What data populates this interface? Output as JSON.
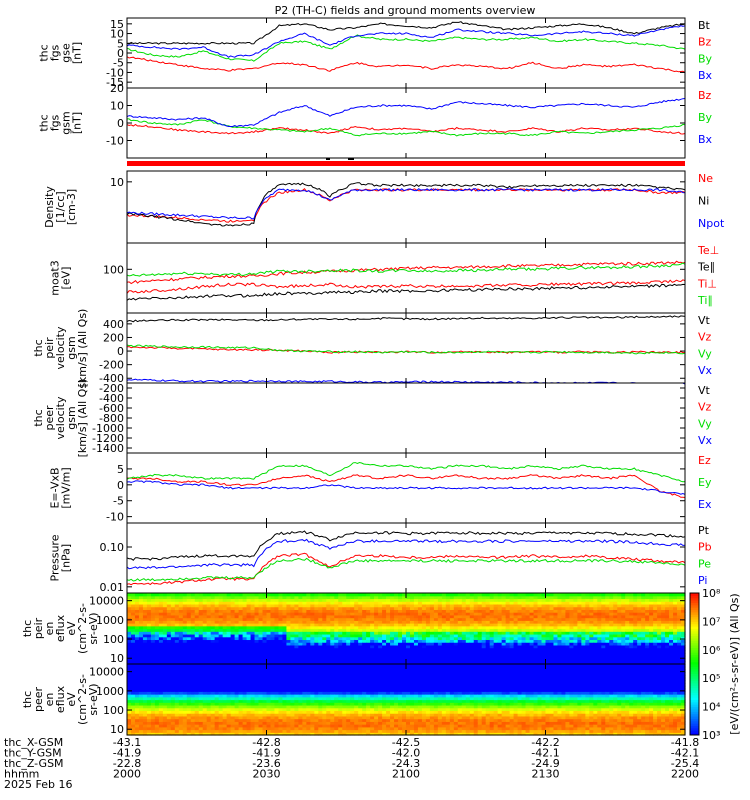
{
  "title": "P2 (TH-C) fields and ground moments overview",
  "colors": {
    "black": "#000000",
    "red": "#ff0000",
    "green": "#00dd00",
    "blue": "#0000ff"
  },
  "orbit_bar_color": "#ff0000",
  "chart_data": [
    {
      "id": "fgs_gse",
      "type": "line",
      "ylabel": [
        "thc",
        "fgs",
        "gse",
        "[nT]"
      ],
      "yticks": [
        15,
        10,
        5,
        0,
        -5,
        -10,
        -15
      ],
      "ylim": [
        -18,
        18
      ],
      "series": [
        {
          "name": "Bt",
          "color": "#000000",
          "values": [
            5,
            5,
            5,
            5,
            5,
            5,
            14,
            15,
            12,
            13,
            15,
            14,
            13,
            16,
            14,
            12,
            13,
            14,
            15,
            13,
            10,
            13,
            15
          ]
        },
        {
          "name": "Bz",
          "color": "#ff0000",
          "values": [
            -2,
            -4,
            -6,
            -8,
            -9,
            -8,
            -5,
            -6,
            -9,
            -5,
            -7,
            -6,
            -8,
            -6,
            -7,
            -8,
            -5,
            -8,
            -6,
            -7,
            -6,
            -8,
            -10
          ]
        },
        {
          "name": "By",
          "color": "#00dd00",
          "values": [
            2,
            -1,
            -2,
            1,
            -3,
            -4,
            5,
            6,
            2,
            9,
            7,
            7,
            6,
            8,
            7,
            7,
            8,
            6,
            7,
            6,
            5,
            4,
            2
          ]
        },
        {
          "name": "Bx",
          "color": "#0000ff",
          "values": [
            4,
            3,
            2,
            3,
            -2,
            -1,
            6,
            10,
            4,
            9,
            10,
            10,
            8,
            12,
            11,
            10,
            9,
            10,
            11,
            10,
            9,
            12,
            14
          ]
        }
      ]
    },
    {
      "id": "fgs_gsm",
      "type": "line",
      "ylabel": [
        "thc",
        "fgs",
        "gsm",
        "[nT]"
      ],
      "yticks": [
        20,
        10,
        0,
        -10
      ],
      "ylim": [
        -20,
        20
      ],
      "series": [
        {
          "name": "Bz",
          "color": "#ff0000",
          "values": [
            -1,
            -2,
            -4,
            -5,
            -6,
            -5,
            -3,
            -4,
            -6,
            -2,
            -4,
            -3,
            -5,
            -3,
            -4,
            -5,
            -3,
            -5,
            -3,
            -4,
            -3,
            -5,
            -6
          ]
        },
        {
          "name": "By",
          "color": "#00dd00",
          "values": [
            2,
            0,
            -1,
            2,
            -2,
            -3,
            -4,
            -5,
            -3,
            -7,
            -6,
            -6,
            -5,
            -7,
            -6,
            -6,
            -7,
            -5,
            -6,
            -5,
            -4,
            -3,
            -1
          ]
        },
        {
          "name": "Bx",
          "color": "#0000ff",
          "values": [
            4,
            3,
            2,
            3,
            -2,
            -1,
            6,
            10,
            4,
            9,
            10,
            10,
            8,
            12,
            11,
            10,
            9,
            10,
            11,
            10,
            9,
            12,
            14
          ]
        }
      ]
    },
    {
      "id": "density",
      "type": "line",
      "ylabel": [
        "Density",
        "[1/cc]",
        "[cm-3]"
      ],
      "yticks": [
        10
      ],
      "ylim": [
        0.2,
        20
      ],
      "scale": "log",
      "series": [
        {
          "name": "Ne",
          "color": "#ff0000",
          "values": [
            1.2,
            1.1,
            1.0,
            0.9,
            0.8,
            0.9,
            5,
            6,
            3,
            6,
            6,
            6,
            6,
            6,
            6,
            6,
            6,
            6,
            6,
            6,
            6,
            5,
            5
          ]
        },
        {
          "name": "Ni",
          "color": "#000000",
          "values": [
            1.3,
            1.1,
            0.9,
            0.7,
            0.6,
            0.7,
            8,
            9,
            4,
            9,
            8,
            8,
            8,
            8,
            8,
            7,
            8,
            8,
            8,
            8,
            8,
            7,
            6
          ]
        },
        {
          "name": "Npot",
          "color": "#0000ff",
          "values": [
            1.4,
            1.3,
            1.2,
            1.1,
            1.0,
            1.0,
            6,
            6,
            3,
            6,
            6,
            6,
            6,
            6,
            6,
            6,
            6,
            6,
            6,
            6,
            6,
            6,
            5
          ]
        }
      ]
    },
    {
      "id": "temperature",
      "type": "line",
      "ylabel": [
        "moat3",
        "[eV]"
      ],
      "yticks": [
        100
      ],
      "ylim": [
        10,
        400
      ],
      "scale": "log",
      "series": [
        {
          "name": "Te⊥",
          "color": "#ff0000",
          "values": [
            30,
            32,
            35,
            40,
            45,
            45,
            40,
            42,
            45,
            40,
            40,
            42,
            40,
            42,
            42,
            44,
            44,
            46,
            46,
            48,
            48,
            52,
            55
          ]
        },
        {
          "name": "Te∥",
          "color": "#000000",
          "values": [
            20,
            22,
            22,
            24,
            25,
            25,
            28,
            28,
            30,
            30,
            32,
            32,
            32,
            34,
            34,
            36,
            36,
            38,
            38,
            40,
            40,
            42,
            45
          ]
        },
        {
          "name": "Ti⊥",
          "color": "#ff0000",
          "values": [
            50,
            55,
            60,
            65,
            70,
            70,
            80,
            85,
            90,
            95,
            100,
            105,
            110,
            110,
            115,
            120,
            120,
            125,
            130,
            135,
            135,
            140,
            145
          ]
        },
        {
          "name": "Ti∥",
          "color": "#00dd00",
          "values": [
            70,
            75,
            80,
            80,
            75,
            80,
            90,
            90,
            95,
            95,
            90,
            95,
            90,
            95,
            95,
            100,
            100,
            105,
            110,
            110,
            115,
            120,
            130
          ]
        }
      ]
    },
    {
      "id": "peir_velocity",
      "type": "line",
      "ylabel": [
        "thc",
        "peir",
        "velocity",
        "gsm",
        "[km/s] (All Qs)"
      ],
      "yticks": [
        400,
        200,
        0,
        -200,
        -400
      ],
      "ylim": [
        -470,
        560
      ],
      "series": [
        {
          "name": "Vt",
          "color": "#000000",
          "values": [
            440,
            450,
            455,
            460,
            460,
            455,
            460,
            470,
            465,
            470,
            480,
            475,
            470,
            480,
            485,
            480,
            485,
            490,
            495,
            490,
            500,
            505,
            510
          ]
        },
        {
          "name": "Vz",
          "color": "#ff0000",
          "values": [
            60,
            50,
            40,
            30,
            20,
            20,
            10,
            0,
            -20,
            -10,
            -20,
            -10,
            -20,
            -10,
            -10,
            -20,
            -10,
            -20,
            -10,
            -20,
            -10,
            -20,
            -20
          ]
        },
        {
          "name": "Vy",
          "color": "#00dd00",
          "values": [
            80,
            70,
            60,
            60,
            50,
            50,
            10,
            0,
            -10,
            -10,
            -20,
            -10,
            -20,
            -20,
            -10,
            -20,
            -20,
            -10,
            -20,
            -20,
            -30,
            -20,
            -30
          ]
        },
        {
          "name": "Vx",
          "color": "#0000ff",
          "values": [
            -420,
            -430,
            -440,
            -445,
            -445,
            -440,
            -440,
            -450,
            -445,
            -455,
            -460,
            -455,
            -450,
            -455,
            -460,
            -460,
            -465,
            -470,
            -470,
            -470,
            -475,
            -480,
            -485
          ]
        }
      ]
    },
    {
      "id": "peer_velocity",
      "type": "line",
      "ylabel": [
        "thc",
        "peer",
        "velocity",
        "gsm",
        "[km/s] (All Qs)"
      ],
      "yticks": [
        -200,
        -400,
        -600,
        -800,
        -1000,
        -1200,
        -1400
      ],
      "ylim": [
        -1500,
        -100
      ],
      "series": [
        {
          "name": "Vt",
          "color": "#000000",
          "values": []
        },
        {
          "name": "Vz",
          "color": "#ff0000",
          "values": []
        },
        {
          "name": "Vy",
          "color": "#00dd00",
          "values": []
        },
        {
          "name": "Vx",
          "color": "#0000ff",
          "values": []
        }
      ]
    },
    {
      "id": "efield",
      "type": "line",
      "ylabel": [
        "E=-VxB",
        "[mV/m]"
      ],
      "yticks": [
        5,
        0,
        -5,
        -10
      ],
      "ylim": [
        -12,
        10
      ],
      "series": [
        {
          "name": "Ez",
          "color": "#ff0000",
          "values": [
            2,
            2,
            1,
            1,
            0,
            0,
            2,
            3,
            1,
            3,
            2,
            3,
            2,
            3,
            2,
            2,
            3,
            2,
            3,
            2,
            3,
            -2,
            -4
          ]
        },
        {
          "name": "Ey",
          "color": "#00dd00",
          "values": [
            2,
            3,
            3,
            2,
            2,
            2,
            6,
            6,
            3,
            7,
            6,
            6,
            5,
            6,
            6,
            5,
            6,
            5,
            6,
            5,
            5,
            3,
            1
          ]
        },
        {
          "name": "Ex",
          "color": "#0000ff",
          "values": [
            1,
            1,
            0,
            0,
            -1,
            -1,
            -1,
            -1,
            0,
            -1,
            -1,
            -1,
            -1,
            -1,
            -1,
            -1,
            -1,
            -1,
            -1,
            -1,
            -1,
            -2,
            -3
          ]
        }
      ]
    },
    {
      "id": "pressure",
      "type": "line",
      "ylabel": [
        "Pressure",
        "[nPa]"
      ],
      "yticks": [
        0.1,
        0.01
      ],
      "tick_labels": [
        "0.10",
        "0.01"
      ],
      "ylim": [
        0.007,
        0.4
      ],
      "scale": "log",
      "series": [
        {
          "name": "Pt",
          "color": "#000000",
          "values": [
            0.05,
            0.05,
            0.055,
            0.06,
            0.06,
            0.06,
            0.22,
            0.24,
            0.15,
            0.23,
            0.23,
            0.22,
            0.22,
            0.23,
            0.22,
            0.22,
            0.22,
            0.23,
            0.22,
            0.22,
            0.21,
            0.2,
            0.18
          ]
        },
        {
          "name": "Pb",
          "color": "#ff0000",
          "values": [
            0.012,
            0.012,
            0.013,
            0.015,
            0.016,
            0.015,
            0.06,
            0.065,
            0.03,
            0.06,
            0.06,
            0.055,
            0.055,
            0.06,
            0.055,
            0.055,
            0.06,
            0.055,
            0.06,
            0.055,
            0.05,
            0.045,
            0.04
          ]
        },
        {
          "name": "Pe",
          "color": "#00dd00",
          "values": [
            0.015,
            0.015,
            0.016,
            0.017,
            0.017,
            0.017,
            0.045,
            0.05,
            0.03,
            0.045,
            0.045,
            0.045,
            0.045,
            0.045,
            0.045,
            0.045,
            0.045,
            0.045,
            0.045,
            0.045,
            0.043,
            0.04,
            0.035
          ]
        },
        {
          "name": "Pi",
          "color": "#0000ff",
          "values": [
            0.03,
            0.03,
            0.032,
            0.035,
            0.036,
            0.035,
            0.14,
            0.15,
            0.09,
            0.14,
            0.14,
            0.14,
            0.14,
            0.14,
            0.14,
            0.14,
            0.14,
            0.14,
            0.14,
            0.14,
            0.13,
            0.12,
            0.11
          ]
        }
      ]
    },
    {
      "id": "peir_spec",
      "type": "heatmap",
      "ylabel": [
        "thc",
        "peir",
        "en",
        "eflux",
        "eV",
        "(cm^2-s-",
        "sr-eV)"
      ],
      "yticks": [
        10000,
        1000,
        100,
        10
      ],
      "tick_labels": [
        "10000",
        "1000",
        "100",
        "10"
      ],
      "ylim": [
        5,
        25000
      ],
      "scale": "log",
      "zlim_exponents": [
        3,
        8
      ],
      "peak_energy": 1800
    },
    {
      "id": "peer_spec",
      "type": "heatmap",
      "ylabel": [
        "thc",
        "peer",
        "en",
        "eflux",
        "eV",
        "(cm^2-s-",
        "sr-eV)"
      ],
      "yticks": [
        10000,
        1000,
        100,
        10
      ],
      "tick_labels": [
        "10000",
        "1000",
        "100",
        "10"
      ],
      "ylim": [
        5,
        25000
      ],
      "scale": "log",
      "zlim_exponents": [
        3,
        8
      ],
      "peak_energy": 20
    }
  ],
  "colorbar": {
    "tick_labels": [
      "10³",
      "10⁴",
      "10⁵",
      "10⁶",
      "10⁷",
      "10⁸"
    ],
    "label": "[eV/(cm²-s-sr-eV)] (All Qs)"
  },
  "x_axis": {
    "start": "2000",
    "end": "2200",
    "hhmm": [
      "2000",
      "2030",
      "2100",
      "2130",
      "2200"
    ],
    "rows": [
      {
        "label": "thc_X-GSM",
        "values": [
          "-43.1",
          "-42.8",
          "-42.5",
          "-42.2",
          "-41.8"
        ]
      },
      {
        "label": "thc_Y-GSM",
        "values": [
          "-41.9",
          "-41.9",
          "-42.0",
          "-42.1",
          "-42.1"
        ]
      },
      {
        "label": "thc_Z-GSM",
        "values": [
          "-22.8",
          "-23.6",
          "-24.3",
          "-24.9",
          "-25.4"
        ]
      },
      {
        "label": "hhmm",
        "values": [
          "2000",
          "2030",
          "2100",
          "2130",
          "2200"
        ]
      }
    ],
    "date": "2025 Feb 16"
  }
}
